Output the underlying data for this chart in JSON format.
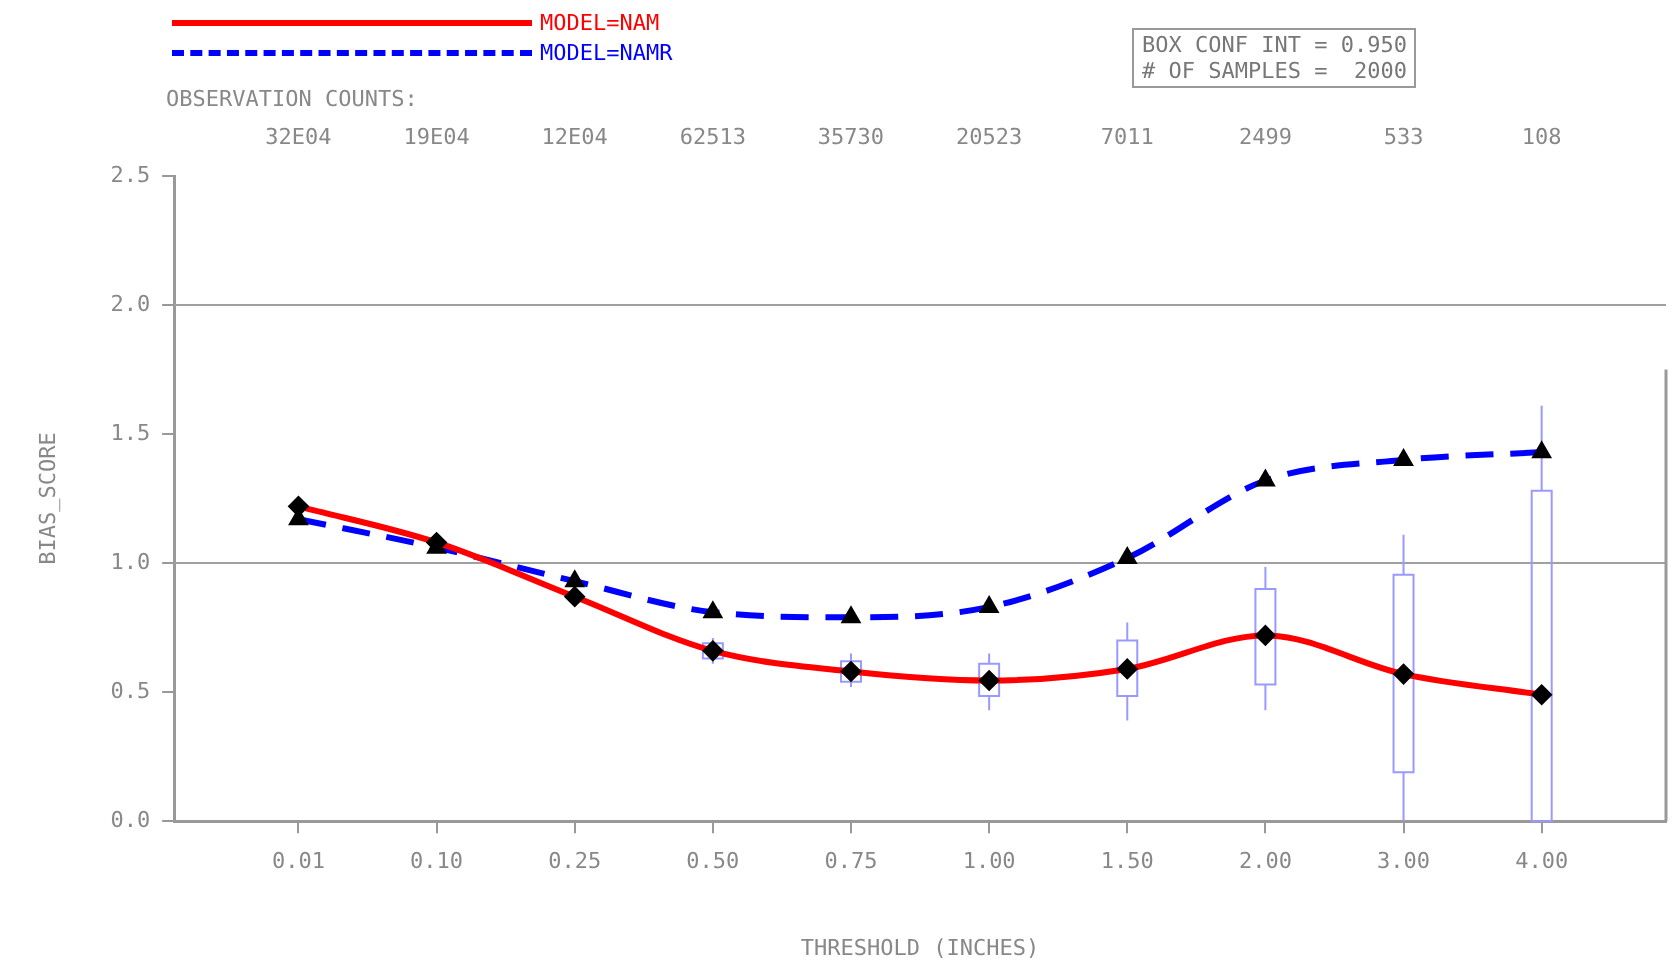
{
  "chart_data": {
    "type": "line",
    "xlabel": "THRESHOLD (INCHES)",
    "ylabel": "BIAS_SCORE",
    "x2label": "OBSERVATION COUNTS:",
    "categories": [
      "0.01",
      "0.10",
      "0.25",
      "0.50",
      "0.75",
      "1.00",
      "1.50",
      "2.00",
      "3.00",
      "4.00"
    ],
    "series": [
      {
        "name": "MODEL=NAM",
        "color": "#ff0000",
        "marker": "diamond",
        "line_style": "solid",
        "values": [
          1.22,
          1.08,
          0.87,
          0.66,
          0.58,
          0.545,
          0.59,
          0.72,
          0.57,
          0.49
        ]
      },
      {
        "name": "MODEL=NAMR",
        "color": "#0000ff",
        "marker": "triangle",
        "line_style": "dashed",
        "values": [
          1.17,
          1.06,
          0.93,
          0.81,
          0.79,
          0.83,
          1.02,
          1.32,
          1.4,
          1.43
        ]
      },
      {
        "type": "box",
        "color": "#9999ff",
        "boxes": [
          null,
          null,
          null,
          {
            "low": 0.61,
            "q1": 0.63,
            "median": 0.66,
            "q3": 0.69,
            "high": 0.71
          },
          {
            "low": 0.52,
            "q1": 0.54,
            "median": 0.58,
            "q3": 0.62,
            "high": 0.65
          },
          {
            "low": 0.43,
            "q1": 0.485,
            "median": 0.545,
            "q3": 0.61,
            "high": 0.65
          },
          {
            "low": 0.39,
            "q1": 0.485,
            "median": 0.59,
            "q3": 0.7,
            "high": 0.77
          },
          {
            "low": 0.43,
            "q1": 0.53,
            "median": 0.72,
            "q3": 0.9,
            "high": 0.985
          },
          {
            "low": 0,
            "q1": 0.19,
            "median": 0.57,
            "q3": 0.955,
            "high": 1.11
          },
          {
            "low": 0,
            "q1": 0,
            "median": 0.49,
            "q3": 1.28,
            "high": 1.61
          }
        ]
      }
    ],
    "ylim": [
      0,
      2.5
    ],
    "yticks": [
      {
        "value": 0,
        "label": "0.0"
      },
      {
        "value": 0.5,
        "label": "0.5"
      },
      {
        "value": 1,
        "label": "1.0"
      },
      {
        "value": 1.5,
        "label": "1.5"
      },
      {
        "value": 2,
        "label": "2.0"
      },
      {
        "value": 2.5,
        "label": "2.5"
      }
    ],
    "ref_lines": [
      {
        "axis": "y",
        "value": 1,
        "color": "#a0a0a0"
      },
      {
        "axis": "y",
        "value": 2,
        "color": "#a0a0a0"
      }
    ],
    "legend": "top left",
    "annotations": [
      "BOX CONF INT = 0.950",
      "# OF SAMPLES =  2000",
      "32E04",
      "19E04",
      "12E04",
      "62513",
      "35730",
      "20523",
      "7011",
      "2499",
      "533",
      "108"
    ]
  }
}
